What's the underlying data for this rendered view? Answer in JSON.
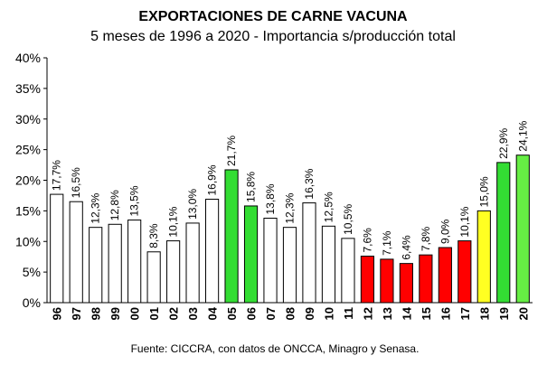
{
  "chart_data": {
    "type": "bar",
    "title": "EXPORTACIONES DE CARNE VACUNA",
    "subtitle": "5 meses de 1996 a 2020 - Importancia s/producción total",
    "source": "Fuente: CICCRA, con datos de ONCCA, Minagro y Senasa.",
    "xlabel": "",
    "ylabel": "",
    "ylim": [
      0,
      40
    ],
    "yticks": [
      "0%",
      "5%",
      "10%",
      "15%",
      "20%",
      "25%",
      "30%",
      "35%",
      "40%"
    ],
    "grid": false,
    "categories": [
      "96",
      "97",
      "98",
      "99",
      "00",
      "01",
      "02",
      "03",
      "04",
      "05",
      "06",
      "07",
      "08",
      "09",
      "10",
      "11",
      "12",
      "13",
      "14",
      "15",
      "16",
      "17",
      "18",
      "19",
      "20"
    ],
    "values": [
      17.7,
      16.5,
      12.3,
      12.8,
      13.5,
      8.3,
      10.1,
      13.0,
      16.9,
      21.7,
      15.8,
      13.8,
      12.3,
      16.3,
      12.5,
      10.5,
      7.6,
      7.1,
      6.4,
      7.8,
      9.0,
      10.1,
      15.0,
      22.9,
      24.1
    ],
    "labels": [
      "17,7%",
      "16,5%",
      "12,3%",
      "12,8%",
      "13,5%",
      "8,3%",
      "10,1%",
      "13,0%",
      "16,9%",
      "21,7%",
      "15,8%",
      "13,8%",
      "12,3%",
      "16,3%",
      "12,5%",
      "10,5%",
      "7,6%",
      "7,1%",
      "6,4%",
      "7,8%",
      "9,0%",
      "10,1%",
      "15,0%",
      "22,9%",
      "24,1%"
    ],
    "bar_colors": [
      "#ffffff",
      "#ffffff",
      "#ffffff",
      "#ffffff",
      "#ffffff",
      "#ffffff",
      "#ffffff",
      "#ffffff",
      "#ffffff",
      "#33dd33",
      "#33dd33",
      "#ffffff",
      "#ffffff",
      "#ffffff",
      "#ffffff",
      "#ffffff",
      "#ff0000",
      "#ff0000",
      "#ff0000",
      "#ff0000",
      "#ff0000",
      "#ff0000",
      "#ffff22",
      "#33dd33",
      "#66ee44"
    ]
  }
}
